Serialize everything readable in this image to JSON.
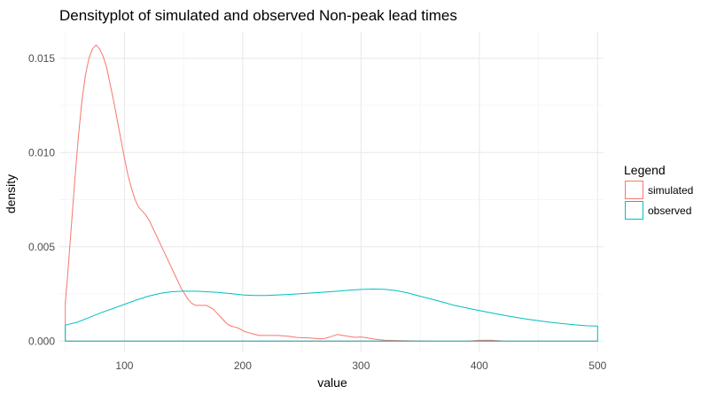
{
  "chart_data": {
    "type": "line",
    "title": "Densityplot of simulated and observed Non-peak lead times",
    "xlabel": "value",
    "ylabel": "density",
    "xlim": [
      45,
      505
    ],
    "ylim": [
      -0.00055,
      0.0164
    ],
    "x_ticks": [
      {
        "value": 100,
        "label": "100"
      },
      {
        "value": 200,
        "label": "200"
      },
      {
        "value": 300,
        "label": "300"
      },
      {
        "value": 400,
        "label": "400"
      },
      {
        "value": 500,
        "label": "500"
      }
    ],
    "y_ticks": [
      {
        "value": 0,
        "label": "0.000"
      },
      {
        "value": 0.005,
        "label": "0.005"
      },
      {
        "value": 0.01,
        "label": "0.010"
      },
      {
        "value": 0.015,
        "label": "0.015"
      }
    ],
    "grid": true,
    "legend": {
      "title": "Legend",
      "position": "right"
    },
    "series": [
      {
        "name": "simulated",
        "color": "#F8766D",
        "x": [
          50,
          52,
          55,
          58,
          61,
          64,
          67,
          70,
          73,
          76,
          79,
          82,
          85,
          88,
          91,
          94,
          97,
          100,
          103,
          106,
          109,
          112,
          115,
          118,
          121,
          124,
          127,
          130,
          133,
          136,
          139,
          142,
          145,
          148,
          151,
          154,
          157,
          160,
          163,
          166,
          169,
          172,
          175,
          178,
          181,
          184,
          187,
          190,
          193,
          196,
          199,
          202,
          205,
          208,
          211,
          214,
          217,
          220,
          225,
          230,
          235,
          240,
          245,
          250,
          255,
          260,
          265,
          270,
          275,
          280,
          285,
          290,
          295,
          300,
          305,
          310,
          315,
          320,
          325,
          330,
          340,
          350,
          360,
          370,
          380,
          390,
          400,
          410,
          420,
          500
        ],
        "y": [
          0.002,
          0.0035,
          0.006,
          0.0085,
          0.0108,
          0.0127,
          0.0141,
          0.015,
          0.0155,
          0.0157,
          0.0155,
          0.0151,
          0.0145,
          0.0136,
          0.0127,
          0.0117,
          0.0107,
          0.0097,
          0.0088,
          0.0081,
          0.0075,
          0.0071,
          0.0069,
          0.0067,
          0.0064,
          0.006,
          0.0056,
          0.0052,
          0.0048,
          0.0044,
          0.004,
          0.0036,
          0.0032,
          0.0028,
          0.0025,
          0.0022,
          0.002,
          0.0019,
          0.0019,
          0.0019,
          0.0019,
          0.0018,
          0.0017,
          0.0015,
          0.0013,
          0.0011,
          0.0009,
          0.0008,
          0.00075,
          0.0007,
          0.0006,
          0.0005,
          0.00045,
          0.0004,
          0.00035,
          0.0003,
          0.0003,
          0.0003,
          0.0003,
          0.0003,
          0.00028,
          0.00025,
          0.0002,
          0.00018,
          0.00018,
          0.00015,
          0.00012,
          0.00015,
          0.00025,
          0.00035,
          0.0003,
          0.00025,
          0.0002,
          0.00022,
          0.00018,
          0.00012,
          8e-05,
          5e-05,
          4e-05,
          3e-05,
          2e-05,
          1e-05,
          0.0,
          0.0,
          0.0,
          0.0,
          4e-05,
          5e-05,
          1e-05,
          0.0
        ]
      },
      {
        "name": "observed",
        "color": "#00BFC4",
        "x": [
          50,
          60,
          70,
          80,
          90,
          100,
          110,
          120,
          130,
          140,
          150,
          160,
          170,
          180,
          190,
          200,
          210,
          220,
          230,
          240,
          250,
          260,
          270,
          280,
          290,
          300,
          310,
          320,
          330,
          340,
          350,
          360,
          370,
          380,
          390,
          400,
          410,
          420,
          430,
          440,
          450,
          460,
          470,
          480,
          490,
          500
        ],
        "y": [
          0.00085,
          0.001,
          0.00125,
          0.0015,
          0.00172,
          0.00195,
          0.00218,
          0.00238,
          0.00253,
          0.00262,
          0.00265,
          0.00265,
          0.00262,
          0.00258,
          0.00252,
          0.00245,
          0.00242,
          0.00242,
          0.00245,
          0.00248,
          0.00252,
          0.00256,
          0.0026,
          0.00265,
          0.0027,
          0.00274,
          0.00276,
          0.00275,
          0.00268,
          0.00255,
          0.00238,
          0.00222,
          0.00205,
          0.00188,
          0.00175,
          0.00162,
          0.0015,
          0.00138,
          0.00127,
          0.00117,
          0.00108,
          0.001,
          0.00093,
          0.00087,
          0.00082,
          0.0008
        ]
      }
    ]
  }
}
